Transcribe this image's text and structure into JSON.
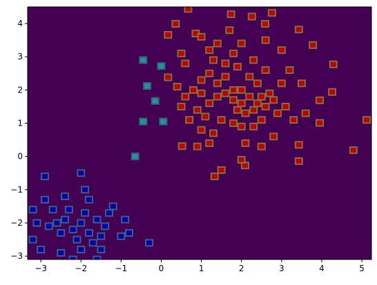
{
  "chart_data": {
    "type": "scatter",
    "marker": "square",
    "background": "#440154",
    "xlim": [
      -3.33,
      5.24
    ],
    "ylim": [
      -3.1,
      4.5
    ],
    "xticks": [
      {
        "value": -3,
        "label": "−3"
      },
      {
        "value": -2,
        "label": "−2"
      },
      {
        "value": -1,
        "label": "−1"
      },
      0,
      1,
      2,
      3,
      4,
      5
    ],
    "yticks": [
      {
        "value": -3,
        "label": "−3"
      },
      {
        "value": -2,
        "label": "−2"
      },
      {
        "value": -1,
        "label": "−1"
      },
      0,
      1,
      2,
      3,
      4
    ],
    "series": [
      {
        "color": "#c80000",
        "edge": "#8a7a36",
        "x": [
          0.67,
          0.36,
          1.74,
          2.26,
          2.76,
          2.59,
          3.43,
          3.78,
          4.29,
          4.26,
          3.95,
          3.95,
          5.12,
          4.79,
          3.43,
          3.43,
          2.09,
          1.5,
          1.33,
          0.52,
          0.17,
          0.86,
          0.17,
          1.0,
          1.2,
          1.4,
          1.6,
          1.8,
          2.0,
          2.2,
          2.4,
          2.0,
          1.8,
          1.9,
          2.1,
          2.3,
          2.5,
          2.6,
          2.7,
          2.8,
          1.6,
          1.4,
          1.2,
          1.0,
          0.9,
          0.8,
          1.1,
          1.5,
          1.8,
          2.0,
          2.3,
          2.5,
          2.9,
          3.0,
          2.4,
          2.2,
          1.9,
          1.6,
          1.3,
          1.2,
          1.4,
          1.8,
          2.3,
          2.6,
          3.2,
          3.5,
          3.1,
          3.3,
          3.6,
          0.5,
          0.6,
          0.7,
          0.4,
          0.6,
          0.5,
          1.0,
          1.3,
          1.0,
          0.9,
          2.8,
          2.5,
          2.1,
          2.0,
          3.0,
          2.6,
          2.0,
          1.7,
          1.2
        ],
        "y": [
          4.44,
          3.99,
          4.28,
          4.21,
          4.32,
          3.99,
          3.82,
          3.35,
          2.77,
          1.94,
          1.69,
          1.01,
          1.1,
          0.19,
          0.35,
          -0.14,
          -0.27,
          -0.41,
          -0.6,
          0.31,
          3.66,
          3.7,
          2.38,
          2.3,
          2.5,
          2.2,
          2.4,
          2.0,
          2.0,
          1.8,
          1.6,
          1.6,
          1.7,
          1.4,
          1.3,
          1.4,
          1.8,
          1.5,
          1.9,
          1.7,
          1.9,
          1.8,
          1.6,
          1.9,
          1.4,
          2.0,
          1.2,
          1.1,
          1.0,
          0.9,
          0.9,
          1.1,
          1.3,
          2.2,
          2.2,
          2.4,
          2.7,
          2.8,
          2.9,
          3.2,
          3.4,
          3.1,
          2.9,
          2.6,
          2.6,
          2.2,
          1.5,
          1.1,
          1.3,
          1.5,
          1.8,
          1.1,
          2.1,
          2.8,
          3.1,
          3.6,
          0.7,
          0.8,
          0.3,
          0.6,
          0.3,
          0.4,
          -0.1,
          3.2,
          3.5,
          3.4,
          3.8,
          0.4
        ]
      },
      {
        "color": "#1fa0a0",
        "edge": "#3a6a7a",
        "x": [
          0.0,
          0.05,
          -0.15,
          -0.35,
          -0.45,
          -0.45,
          -0.65
        ],
        "y": [
          2.72,
          1.05,
          1.67,
          2.12,
          2.9,
          1.05,
          0.0
        ]
      },
      {
        "color": "#0000b4",
        "edge": "#3a6a8a",
        "x": [
          -2.0,
          -2.2,
          -1.8,
          -2.4,
          -1.6,
          -2.1,
          -1.9,
          -2.5,
          -1.5,
          -2.3,
          -1.7,
          -2.6,
          -1.4,
          -2.0,
          -2.8,
          -1.3,
          -2.7,
          -1.8,
          -1.9,
          -2.0,
          -2.9,
          -3.1,
          -3.2,
          -3.0,
          -2.5,
          -2.2,
          -1.6,
          -1.0,
          -0.9,
          -0.8,
          -0.3,
          -1.2,
          -2.4,
          -1.5,
          -3.2,
          -2.9
        ],
        "y": [
          -2.0,
          -2.2,
          -2.3,
          -1.9,
          -1.9,
          -2.5,
          -1.7,
          -2.3,
          -2.4,
          -1.6,
          -2.6,
          -2.0,
          -2.1,
          -2.8,
          -2.1,
          -1.7,
          -1.6,
          -1.3,
          -1.0,
          -0.5,
          -0.6,
          -2.0,
          -2.5,
          -2.8,
          -2.9,
          -3.1,
          -3.1,
          -2.4,
          -1.9,
          -2.3,
          -2.6,
          -1.5,
          -1.2,
          -2.8,
          -1.6,
          -1.3
        ]
      }
    ]
  }
}
